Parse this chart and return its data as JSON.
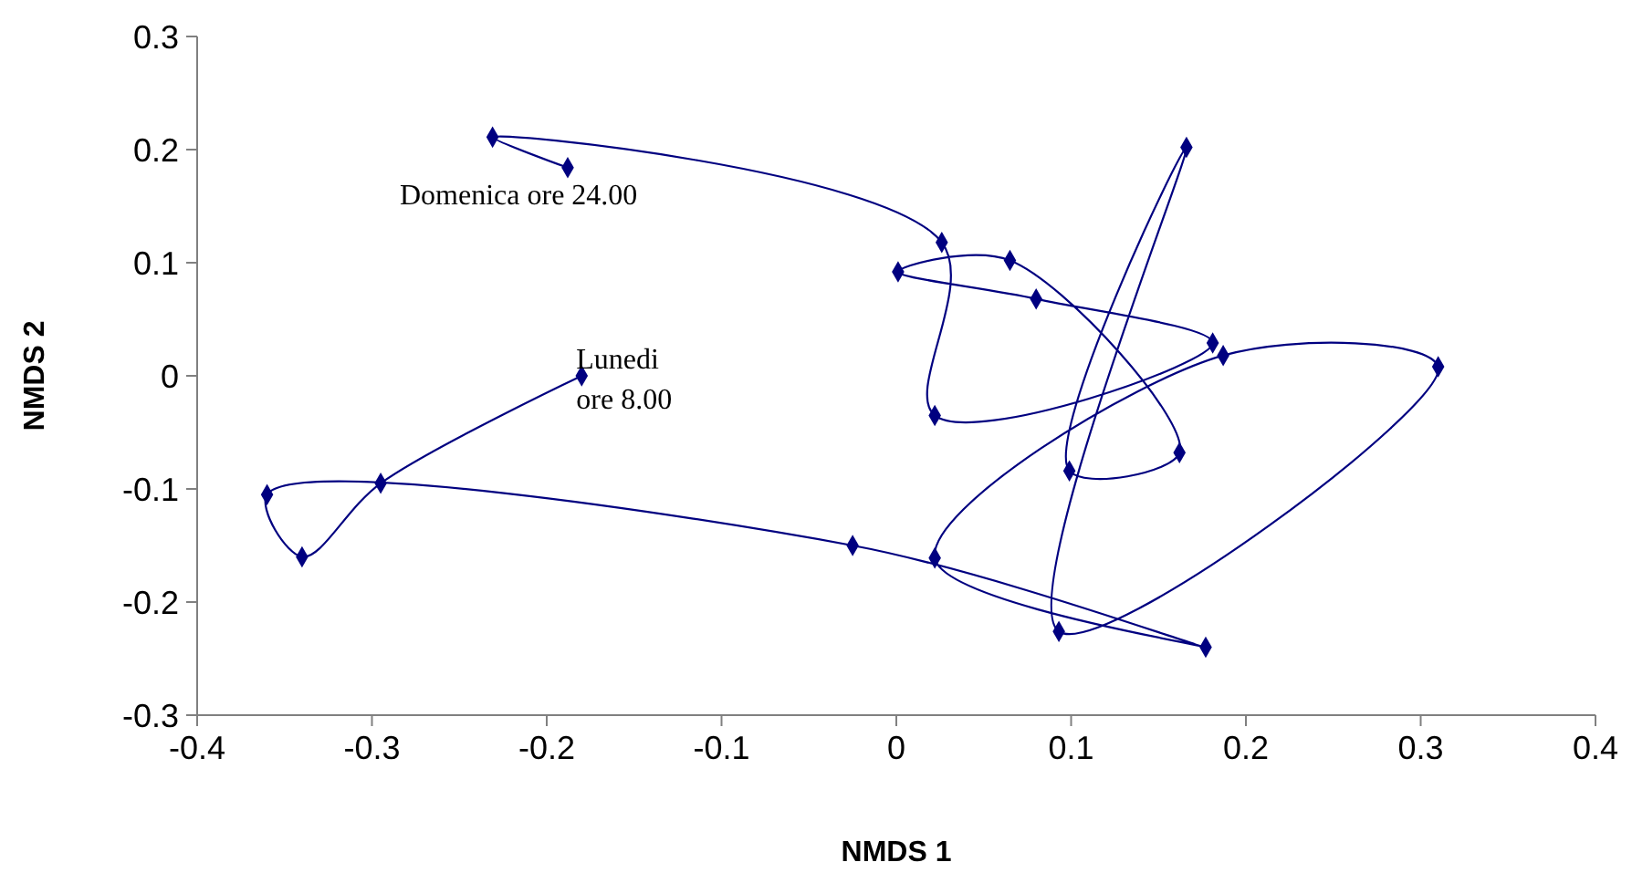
{
  "chart_data": {
    "type": "line",
    "xlabel": "NMDS 1",
    "ylabel": "NMDS 2",
    "x": [
      -0.18,
      -0.295,
      -0.34,
      -0.36,
      -0.025,
      0.177,
      0.022,
      0.187,
      0.31,
      0.093,
      0.166,
      0.099,
      0.162,
      0.065,
      0.001,
      0.08,
      0.181,
      0.022,
      0.026,
      -0.231,
      -0.188
    ],
    "series": [
      {
        "color": "#000080",
        "values": [
          0.0,
          -0.095,
          -0.16,
          -0.105,
          -0.15,
          -0.24,
          -0.161,
          0.018,
          0.008,
          -0.226,
          0.202,
          -0.084,
          -0.068,
          0.102,
          0.092,
          0.068,
          0.029,
          -0.035,
          0.118,
          0.211,
          0.184
        ]
      }
    ],
    "xlim": [
      -0.4,
      0.4
    ],
    "xticks": [
      -0.4,
      -0.3,
      -0.2,
      -0.1,
      0,
      0.1,
      0.2,
      0.3,
      0.4
    ],
    "ylim": [
      -0.3,
      0.3
    ],
    "yticks": [
      -0.3,
      -0.2,
      -0.1,
      0,
      0.1,
      0.2,
      0.3
    ],
    "marker": "diamond",
    "line_style": "solid",
    "annotations": [
      {
        "text": "Lunedi\nore 8.00",
        "x": -0.18,
        "y": 0.0
      },
      {
        "text": "Domenica ore 24.00",
        "x": -0.188,
        "y": 0.184
      }
    ]
  }
}
